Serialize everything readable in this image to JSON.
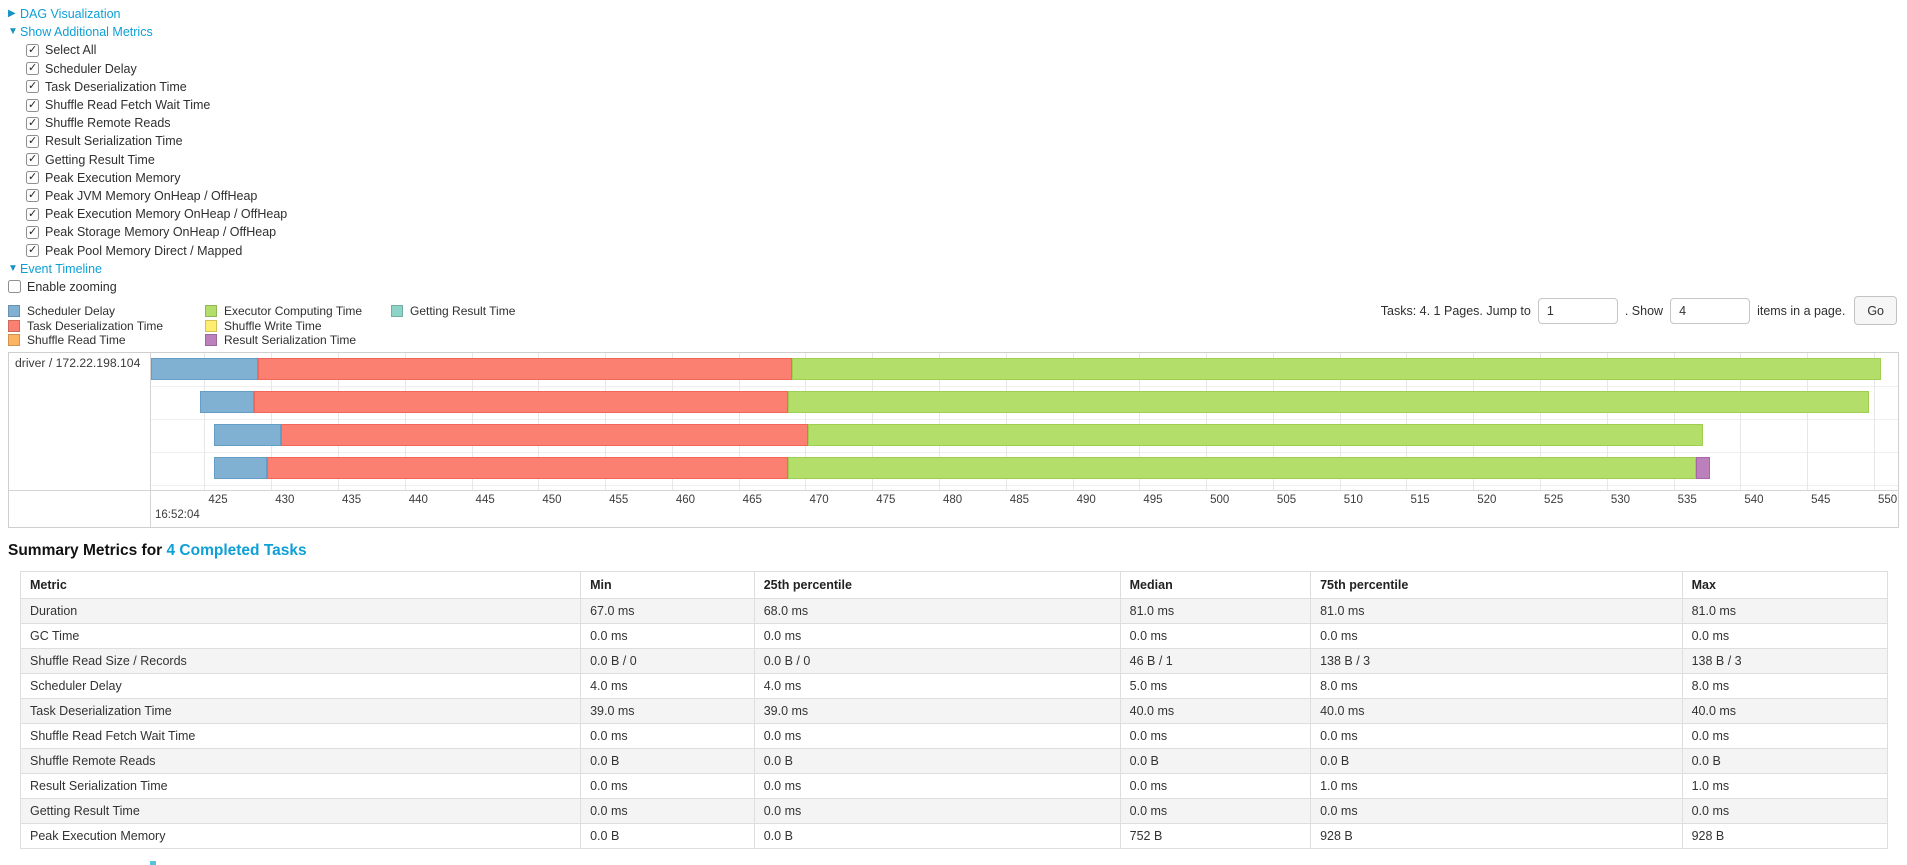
{
  "palette": {
    "blue": {
      "fill": "#80B1D3",
      "border": "#649ec7"
    },
    "red": {
      "fill": "#FB8072",
      "border": "#f2665a"
    },
    "orange": {
      "fill": "#FDB462",
      "border": "#f5a445"
    },
    "green": {
      "fill": "#B3DE69",
      "border": "#9fce50"
    },
    "yellow": {
      "fill": "#FFED6F",
      "border": "#efdb52"
    },
    "purple": {
      "fill": "#BC80BD",
      "border": "#a766a8"
    },
    "teal": {
      "fill": "#8DD3C7",
      "border": "#72c1b3"
    }
  },
  "toggles": {
    "dag_label": "DAG Visualization",
    "metrics_label": "Show Additional Metrics",
    "timeline_label": "Event Timeline"
  },
  "metric_checkboxes": [
    {
      "label": "Select All",
      "checked": true
    },
    {
      "label": "Scheduler Delay",
      "checked": true
    },
    {
      "label": "Task Deserialization Time",
      "checked": true
    },
    {
      "label": "Shuffle Read Fetch Wait Time",
      "checked": true
    },
    {
      "label": "Shuffle Remote Reads",
      "checked": true
    },
    {
      "label": "Result Serialization Time",
      "checked": true
    },
    {
      "label": "Getting Result Time",
      "checked": true
    },
    {
      "label": "Peak Execution Memory",
      "checked": true
    },
    {
      "label": "Peak JVM Memory OnHeap / OffHeap",
      "checked": true
    },
    {
      "label": "Peak Execution Memory OnHeap / OffHeap",
      "checked": true
    },
    {
      "label": "Peak Storage Memory OnHeap / OffHeap",
      "checked": true
    },
    {
      "label": "Peak Pool Memory Direct / Mapped",
      "checked": true
    }
  ],
  "enable_zooming": {
    "label": "Enable zooming",
    "checked": false
  },
  "legend_columns": [
    [
      {
        "label": "Scheduler Delay",
        "color": "blue"
      },
      {
        "label": "Task Deserialization Time",
        "color": "red"
      },
      {
        "label": "Shuffle Read Time",
        "color": "orange"
      }
    ],
    [
      {
        "label": "Executor Computing Time",
        "color": "green"
      },
      {
        "label": "Shuffle Write Time",
        "color": "yellow"
      },
      {
        "label": "Result Serialization Time",
        "color": "purple"
      }
    ],
    [
      {
        "label": "Getting Result Time",
        "color": "teal"
      }
    ]
  ],
  "pagination": {
    "label_tasks": "Tasks: 4. 1 Pages. Jump to",
    "jump_value": "1",
    "label_show": ". Show",
    "show_value": "4",
    "label_items": "items in a page.",
    "go_label": "Go"
  },
  "timeline_chart": {
    "type": "timeline-gantt",
    "executor_label": "driver / 172.22.198.104",
    "axis": {
      "min": 421.0,
      "max": 551.8,
      "ticks": [
        425,
        430,
        435,
        440,
        445,
        450,
        455,
        460,
        465,
        470,
        475,
        480,
        485,
        490,
        495,
        500,
        505,
        510,
        515,
        520,
        525,
        530,
        535,
        540,
        545,
        550
      ],
      "major_label": "16:52:04",
      "unit": "ms within second 16:52:04"
    },
    "lane_tops": [
      5,
      38,
      71,
      104
    ],
    "lane_sep_ys": [
      33,
      66,
      99,
      132
    ],
    "bars": [
      {
        "segments": [
          {
            "color": "blue",
            "start": 421.0,
            "end": 429.0
          },
          {
            "color": "red",
            "start": 429.0,
            "end": 469.0
          },
          {
            "color": "green",
            "start": 469.0,
            "end": 550.5
          }
        ]
      },
      {
        "segments": [
          {
            "color": "blue",
            "start": 424.7,
            "end": 428.7
          },
          {
            "color": "red",
            "start": 428.7,
            "end": 468.7
          },
          {
            "color": "green",
            "start": 468.7,
            "end": 549.6
          }
        ]
      },
      {
        "segments": [
          {
            "color": "blue",
            "start": 425.7,
            "end": 430.7
          },
          {
            "color": "red",
            "start": 430.7,
            "end": 470.2
          },
          {
            "color": "green",
            "start": 470.2,
            "end": 537.2
          }
        ]
      },
      {
        "segments": [
          {
            "color": "blue",
            "start": 425.7,
            "end": 429.7
          },
          {
            "color": "red",
            "start": 429.7,
            "end": 468.7
          },
          {
            "color": "green",
            "start": 468.7,
            "end": 536.7
          },
          {
            "color": "purple",
            "start": 536.7,
            "end": 537.7
          }
        ]
      }
    ]
  },
  "summary": {
    "heading_prefix": "Summary Metrics for ",
    "heading_link": "4 Completed Tasks",
    "columns": [
      "Metric",
      "Min",
      "25th percentile",
      "Median",
      "75th percentile",
      "Max"
    ],
    "rows": [
      {
        "metric": "Duration",
        "values": [
          "67.0 ms",
          "68.0 ms",
          "81.0 ms",
          "81.0 ms",
          "81.0 ms"
        ]
      },
      {
        "metric": "GC Time",
        "values": [
          "0.0 ms",
          "0.0 ms",
          "0.0 ms",
          "0.0 ms",
          "0.0 ms"
        ]
      },
      {
        "metric": "Shuffle Read Size / Records",
        "values": [
          "0.0 B / 0",
          "0.0 B / 0",
          "46 B / 1",
          "138 B / 3",
          "138 B / 3"
        ]
      },
      {
        "metric": "Scheduler Delay",
        "values": [
          "4.0 ms",
          "4.0 ms",
          "5.0 ms",
          "8.0 ms",
          "8.0 ms"
        ]
      },
      {
        "metric": "Task Deserialization Time",
        "values": [
          "39.0 ms",
          "39.0 ms",
          "40.0 ms",
          "40.0 ms",
          "40.0 ms"
        ]
      },
      {
        "metric": "Shuffle Read Fetch Wait Time",
        "values": [
          "0.0 ms",
          "0.0 ms",
          "0.0 ms",
          "0.0 ms",
          "0.0 ms"
        ]
      },
      {
        "metric": "Shuffle Remote Reads",
        "values": [
          "0.0 B",
          "0.0 B",
          "0.0 B",
          "0.0 B",
          "0.0 B"
        ]
      },
      {
        "metric": "Result Serialization Time",
        "values": [
          "0.0 ms",
          "0.0 ms",
          "0.0 ms",
          "1.0 ms",
          "1.0 ms"
        ]
      },
      {
        "metric": "Getting Result Time",
        "values": [
          "0.0 ms",
          "0.0 ms",
          "0.0 ms",
          "0.0 ms",
          "0.0 ms"
        ]
      },
      {
        "metric": "Peak Execution Memory",
        "values": [
          "0.0 B",
          "0.0 B",
          "752 B",
          "928 B",
          "928 B"
        ]
      }
    ]
  }
}
